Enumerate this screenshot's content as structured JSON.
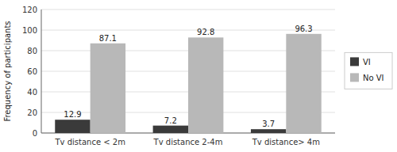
{
  "chart_data": {
    "type": "bar",
    "categories": [
      "Tv distance < 2m",
      "Tv distance 2-4m",
      "Tv distance> 4m"
    ],
    "series": [
      {
        "name": "VI",
        "color": "#3a3a3a",
        "values": [
          12.9,
          7.2,
          3.7
        ]
      },
      {
        "name": "No VI",
        "color": "#b8b8b8",
        "values": [
          87.1,
          92.8,
          96.3
        ]
      }
    ],
    "ylabel": "Frequency of participants",
    "ylim": [
      0,
      120
    ],
    "yticks": [
      0,
      20,
      40,
      60,
      80,
      100,
      120
    ],
    "grid": true,
    "legend": "right",
    "data_labels": true
  }
}
